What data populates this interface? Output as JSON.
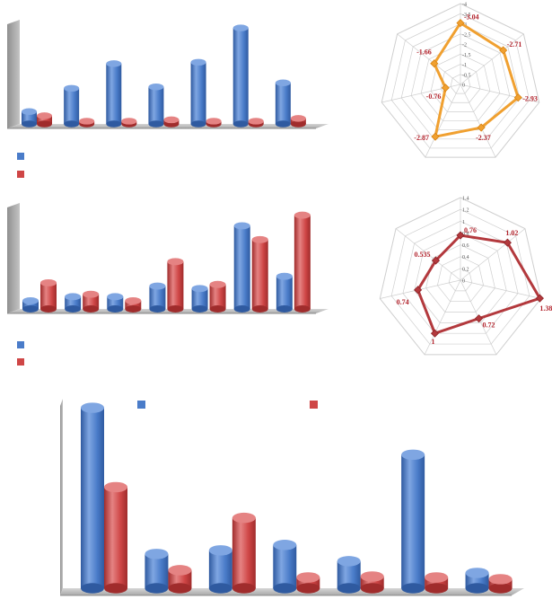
{
  "colors": {
    "blue": "#4a7cc9",
    "blue_dark": "#2f5aa0",
    "blue_light": "#7fa6e2",
    "red": "#cf4646",
    "red_dark": "#a02c2c",
    "red_light": "#e58383",
    "orange": "#f0a030",
    "orange_dark": "#d98414",
    "maroon": "#b3393d",
    "maroon_dark": "#8d2528",
    "label_red": "#b2232c",
    "wall_gray": "#a9a9a9",
    "grid": "#cfcfcf"
  },
  "chart_data": [
    {
      "id": "bar-top",
      "type": "bar",
      "categories": [
        "",
        "",
        "",
        "",
        "",
        "",
        ""
      ],
      "series": [
        {
          "color": "blue",
          "values": [
            0.45,
            1.3,
            2.2,
            1.35,
            2.25,
            3.5,
            1.5
          ]
        },
        {
          "color": "red",
          "values": [
            0.3,
            0.1,
            0.1,
            0.15,
            0.1,
            0.1,
            0.2
          ]
        }
      ],
      "ylim": [
        0,
        3.8
      ],
      "grid": false
    },
    {
      "id": "radar-top",
      "type": "radar",
      "ticks": [
        "0",
        "-0.5",
        "-1",
        "-1.5",
        "-2",
        "-2.5",
        "-3",
        "-3.5",
        "-4"
      ],
      "rmin": 0,
      "rmax": -4,
      "series": [
        {
          "color": "orange",
          "values": [
            -3.04,
            -2.71,
            -2.93,
            -2.37,
            -2.87,
            -0.76,
            -1.66
          ],
          "labels": [
            "-3.04",
            "-2.71",
            "-2.93",
            "-2.37",
            "-2.87",
            "-0.76",
            "-1.66"
          ]
        }
      ]
    },
    {
      "id": "bar-middle",
      "type": "bar",
      "categories": [
        "",
        "",
        "",
        "",
        "",
        "",
        ""
      ],
      "series": [
        {
          "color": "blue",
          "values": [
            0.1,
            0.15,
            0.15,
            0.28,
            0.25,
            1.02,
            0.4
          ]
        },
        {
          "color": "red",
          "values": [
            0.32,
            0.18,
            0.1,
            0.58,
            0.3,
            0.85,
            1.15
          ]
        }
      ],
      "ylim": [
        0,
        1.3
      ],
      "grid": false
    },
    {
      "id": "radar-middle",
      "type": "radar",
      "ticks": [
        "0",
        "0.2",
        "0.4",
        "0.6",
        "0.8",
        "1",
        "1.2",
        "1.4"
      ],
      "rmin": 0,
      "rmax": 1.4,
      "series": [
        {
          "color": "maroon",
          "values": [
            0.76,
            1.02,
            1.38,
            0.72,
            1,
            0.74,
            0.535
          ],
          "labels": [
            "0.76",
            "1.02",
            "1.38",
            "0.72",
            "1",
            "0.74",
            "0.535"
          ]
        }
      ]
    },
    {
      "id": "bar-bottom",
      "type": "bar",
      "categories": [
        "",
        "",
        "",
        "",
        "",
        "",
        ""
      ],
      "series": [
        {
          "color": "blue",
          "values": [
            2.0,
            0.38,
            0.42,
            0.48,
            0.3,
            1.48,
            0.17
          ]
        },
        {
          "color": "red",
          "values": [
            1.12,
            0.2,
            0.78,
            0.12,
            0.13,
            0.12,
            0.1
          ]
        }
      ],
      "ylim": [
        0,
        2.1
      ],
      "grid": false
    }
  ]
}
